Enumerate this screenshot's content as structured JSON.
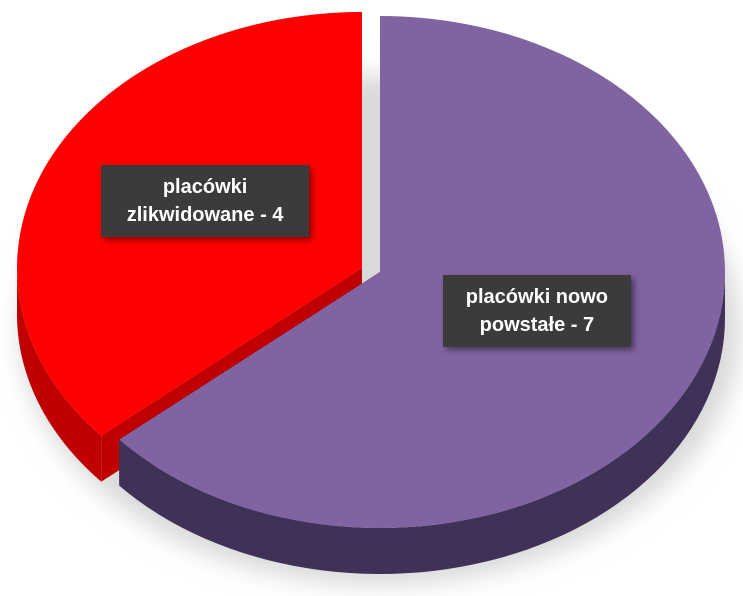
{
  "chart_data": {
    "type": "pie",
    "categories": [
      "placówki nowo powstałe - 7",
      "placówki zlikwidowane - 4"
    ],
    "values": [
      7,
      4
    ],
    "colors": [
      "#8064a2",
      "#ff0000"
    ],
    "side_colors": [
      "#3f3157",
      "#c00000"
    ],
    "start_angle": 0,
    "direction": "clockwise",
    "exploded": [
      false,
      true
    ],
    "three_d": true
  }
}
